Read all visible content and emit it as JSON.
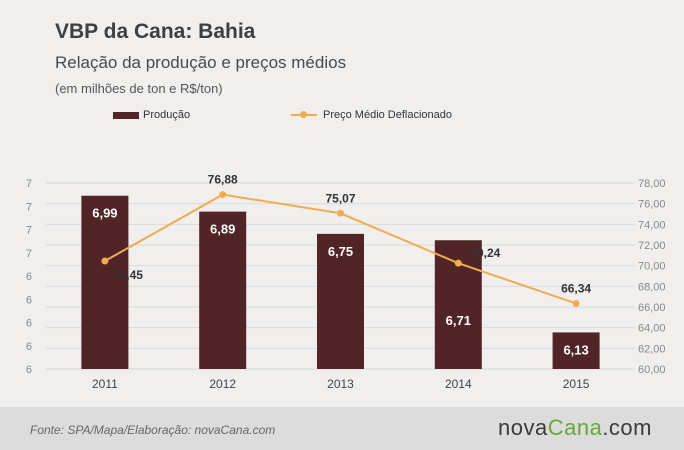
{
  "colors": {
    "bar": "#512527",
    "line": "#f0ac50",
    "grid": "#d9d9d9",
    "axis_text": "#888888",
    "label_dark": "#333333",
    "label_light": "#ffffff"
  },
  "chart_data": {
    "type": "bar",
    "title": "VBP da Cana: Bahia",
    "subtitle": "Relação da produção e preços médios",
    "note": "(em milhões de ton e R$/ton)",
    "categories": [
      "2011",
      "2012",
      "2013",
      "2014",
      "2015"
    ],
    "series": [
      {
        "name": "Produção",
        "type": "bar",
        "axis": "left",
        "values": [
          6.99,
          6.89,
          6.75,
          6.71,
          6.13
        ],
        "labels": [
          "6,99",
          "6,89",
          "6,75",
          "6,71",
          "6,13"
        ]
      },
      {
        "name": "Preço Médio Deflacionado",
        "type": "line",
        "axis": "right",
        "values": [
          70.45,
          76.88,
          75.07,
          70.24,
          66.34
        ],
        "labels": [
          "70,45",
          "76,88",
          "75,07",
          "70,24",
          "66,34"
        ]
      }
    ],
    "left_axis": {
      "ticks": [
        "7",
        "7",
        "7",
        "7",
        "6",
        "6",
        "6",
        "6",
        "6"
      ]
    },
    "right_axis": {
      "ylim": [
        60,
        78
      ],
      "ticks": [
        "78,00",
        "76,00",
        "74,00",
        "72,00",
        "70,00",
        "68,00",
        "66,00",
        "64,00",
        "62,00",
        "60,00"
      ]
    },
    "legend_position": "top",
    "grid": true
  },
  "footer": {
    "source": "Fonte: SPA/Mapa/Elaboração: novaCana.com",
    "logo_part1": "nova",
    "logo_part2": "Cana",
    "logo_part3": ".com"
  }
}
